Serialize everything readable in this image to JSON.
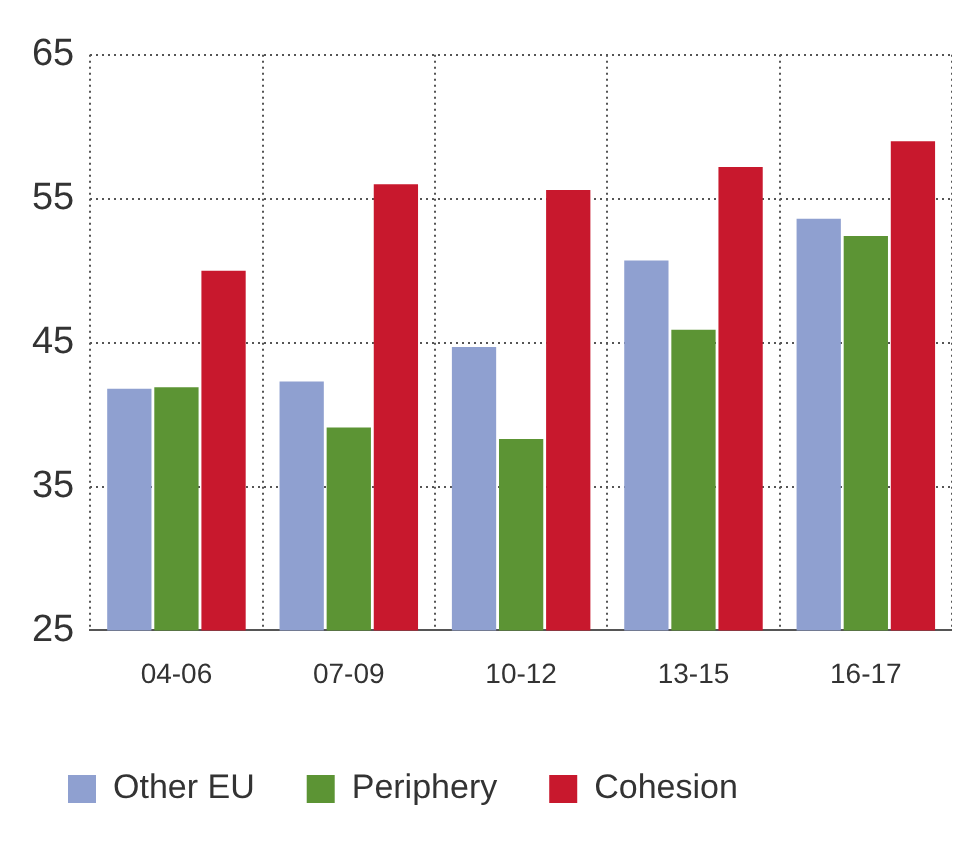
{
  "chart_data": {
    "type": "bar",
    "categories": [
      "04-06",
      "07-09",
      "10-12",
      "13-15",
      "16-17"
    ],
    "series": [
      {
        "name": "Other EU",
        "color": "#8fa0d0",
        "values": [
          41.8,
          42.3,
          44.7,
          50.7,
          53.6
        ]
      },
      {
        "name": "Periphery",
        "color": "#5c9434",
        "values": [
          41.9,
          39.1,
          38.3,
          45.9,
          52.4
        ]
      },
      {
        "name": "Cohesion",
        "color": "#c8182d",
        "values": [
          50.0,
          56.0,
          55.6,
          57.2,
          59.0
        ]
      }
    ],
    "ylim": [
      25,
      65
    ],
    "yticks": [
      25,
      35,
      45,
      55,
      65
    ],
    "grid": true,
    "legend": "bottom"
  }
}
